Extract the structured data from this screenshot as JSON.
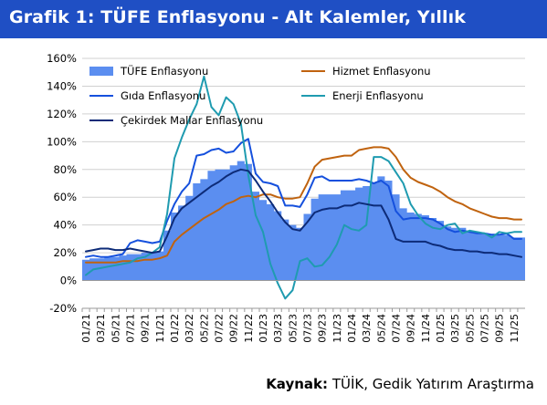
{
  "header": {
    "title": "Grafik 1: TÜFE Enflasyonu - Alt Kalemler, Yıllık"
  },
  "source": {
    "label": "Kaynak:",
    "text": "TÜİK, Gedik Yatırım Araştırma"
  },
  "colors": {
    "header_bg": "#1f4fc4",
    "tufe": "#5b8ef0",
    "hizmet": "#c0630f",
    "gida": "#1550dd",
    "enerji": "#1f9bb0",
    "cekirdek": "#0d2b78"
  },
  "chart_data": {
    "type": "area",
    "ylim": [
      -20,
      160
    ],
    "yticks": [
      -20,
      0,
      20,
      40,
      60,
      80,
      100,
      120,
      140,
      160
    ],
    "ytick_labels": [
      "-20%",
      "0%",
      "20%",
      "40%",
      "60%",
      "80%",
      "100%",
      "120%",
      "140%",
      "160%"
    ],
    "grid": true,
    "legend_position": "top",
    "x": [
      "01/21",
      "02/21",
      "03/21",
      "04/21",
      "05/21",
      "06/21",
      "07/21",
      "08/21",
      "09/21",
      "10/21",
      "11/21",
      "12/21",
      "01/22",
      "02/22",
      "03/22",
      "04/22",
      "05/22",
      "06/22",
      "07/22",
      "08/22",
      "09/22",
      "10/22",
      "11/22",
      "12/22",
      "01/23",
      "02/23",
      "03/23",
      "04/23",
      "05/23",
      "06/23",
      "07/23",
      "08/23",
      "09/23",
      "10/23",
      "11/23",
      "12/23",
      "01/24",
      "02/24",
      "03/24",
      "04/24",
      "05/24",
      "06/24",
      "07/24",
      "08/24",
      "09/24",
      "10/24",
      "11/24",
      "12/24",
      "01/25",
      "02/25",
      "03/25",
      "04/25",
      "05/25",
      "06/25",
      "07/25",
      "08/25",
      "09/25",
      "10/25",
      "11/25",
      "12/25"
    ],
    "xtick_labels": [
      "01/21",
      "03/21",
      "05/21",
      "07/21",
      "09/21",
      "11/21",
      "01/22",
      "03/22",
      "05/22",
      "07/22",
      "09/22",
      "11/22",
      "01/23",
      "03/23",
      "05/23",
      "07/23",
      "09/23",
      "11/23",
      "01/24",
      "03/24",
      "05/24",
      "07/24",
      "09/24",
      "11/24",
      "01/25",
      "03/25",
      "05/25",
      "07/25",
      "09/25",
      "11/25"
    ],
    "series": [
      {
        "name": "TÜFE Enflasyonu",
        "type": "area",
        "color": "#5b8ef0",
        "values": [
          15,
          16,
          16,
          17,
          17,
          18,
          19,
          19,
          20,
          20,
          21,
          36,
          49,
          54,
          61,
          70,
          73,
          79,
          80,
          80,
          83,
          86,
          84,
          64,
          58,
          55,
          50,
          44,
          40,
          38,
          48,
          59,
          62,
          62,
          62,
          65,
          65,
          67,
          68,
          70,
          75,
          72,
          62,
          52,
          49,
          48,
          47,
          45,
          43,
          39,
          38,
          38,
          36,
          35,
          34,
          33,
          33,
          33,
          31,
          31
        ]
      },
      {
        "name": "Hizmet Enflasyonu",
        "type": "line",
        "color": "#c0630f",
        "values": [
          13,
          13,
          13,
          13,
          13,
          14,
          14,
          14,
          15,
          15,
          16,
          18,
          28,
          33,
          37,
          41,
          45,
          48,
          51,
          55,
          57,
          60,
          61,
          60,
          62,
          62,
          60,
          59,
          59,
          60,
          70,
          82,
          87,
          88,
          89,
          90,
          90,
          94,
          95,
          96,
          96,
          95,
          89,
          80,
          74,
          71,
          69,
          67,
          64,
          60,
          57,
          55,
          52,
          50,
          48,
          46,
          45,
          45,
          44,
          44
        ]
      },
      {
        "name": "Gıda Enflasyonu",
        "type": "line",
        "color": "#1550dd",
        "values": [
          17,
          18,
          17,
          17,
          18,
          19,
          27,
          29,
          28,
          27,
          28,
          43,
          55,
          64,
          70,
          90,
          91,
          94,
          95,
          92,
          93,
          99,
          102,
          77,
          71,
          70,
          68,
          54,
          54,
          53,
          62,
          74,
          75,
          72,
          72,
          72,
          72,
          73,
          72,
          70,
          72,
          68,
          50,
          44,
          45,
          45,
          45,
          44,
          41,
          37,
          35,
          36,
          35,
          34,
          34,
          33,
          33,
          34,
          30,
          30
        ]
      },
      {
        "name": "Enerji Enflasyonu",
        "type": "line",
        "color": "#1f9bb0",
        "values": [
          4,
          8,
          9,
          10,
          11,
          12,
          13,
          16,
          17,
          20,
          24,
          48,
          88,
          103,
          116,
          127,
          147,
          125,
          119,
          132,
          127,
          113,
          76,
          47,
          35,
          12,
          -2,
          -13,
          -7,
          14,
          16,
          10,
          11,
          17,
          26,
          40,
          37,
          36,
          40,
          89,
          89,
          86,
          78,
          70,
          55,
          47,
          41,
          38,
          37,
          40,
          41,
          34,
          36,
          35,
          34,
          31,
          35,
          34,
          35,
          35
        ]
      },
      {
        "name": "Çekirdek Mallar Enflasyonu",
        "type": "line",
        "color": "#0d2b78",
        "values": [
          21,
          22,
          23,
          23,
          22,
          22,
          23,
          22,
          21,
          20,
          21,
          32,
          45,
          52,
          56,
          60,
          64,
          68,
          71,
          75,
          78,
          80,
          79,
          72,
          64,
          57,
          49,
          42,
          37,
          36,
          42,
          49,
          51,
          52,
          52,
          54,
          54,
          56,
          55,
          54,
          54,
          44,
          30,
          28,
          28,
          28,
          28,
          26,
          25,
          23,
          22,
          22,
          21,
          21,
          20,
          20,
          19,
          19,
          18,
          17
        ]
      }
    ]
  }
}
